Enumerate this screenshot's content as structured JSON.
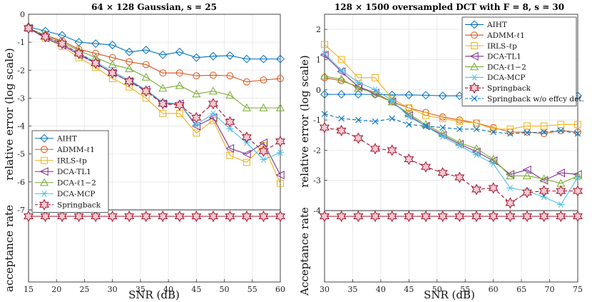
{
  "chart_data": [
    {
      "type": "line",
      "title": "64 × 128 Gaussian, s = 25",
      "xlabel": "SNR (dB)",
      "ylabel": "relative error (log scale)",
      "ylabel_lower": "acceptance rate",
      "xlim": [
        15,
        60
      ],
      "ylim": [
        -7,
        0
      ],
      "x_ticks": [
        15,
        20,
        25,
        30,
        35,
        40,
        45,
        50,
        55,
        60
      ],
      "y_ticks": [
        -7,
        -6,
        -5,
        -4,
        -3,
        -2,
        -1,
        0
      ],
      "legend_position": "lower-left",
      "x": [
        15,
        18,
        21,
        24,
        27,
        30,
        33,
        36,
        39,
        42,
        45,
        48,
        51,
        54,
        57,
        60
      ],
      "series": [
        {
          "name": "AIHT",
          "color": "#0072bd",
          "marker": "diamond",
          "dash": false,
          "values": [
            -0.45,
            -0.6,
            -0.75,
            -1.0,
            -1.05,
            -1.1,
            -1.35,
            -1.28,
            -1.45,
            -1.35,
            -1.55,
            -1.5,
            -1.48,
            -1.6,
            -1.6,
            -1.6
          ]
        },
        {
          "name": "ADMM-ℓ1",
          "color": "#d95319",
          "marker": "circle",
          "dash": false,
          "values": [
            -0.5,
            -0.75,
            -0.95,
            -1.25,
            -1.4,
            -1.55,
            -1.7,
            -1.8,
            -2.1,
            -2.1,
            -2.2,
            -2.18,
            -2.2,
            -2.42,
            -2.35,
            -2.3
          ]
        },
        {
          "name": "IRLS-ℓp",
          "color": "#edb120",
          "marker": "square",
          "dash": false,
          "values": [
            -0.5,
            -0.85,
            -1.15,
            -1.55,
            -1.9,
            -2.3,
            -2.6,
            -3.0,
            -3.55,
            -3.55,
            -4.25,
            -3.8,
            -5.05,
            -5.3,
            -4.7,
            -6.05
          ]
        },
        {
          "name": "DCA-TL1",
          "color": "#7e2f8e",
          "marker": "triangle-left",
          "dash": false,
          "values": [
            -0.5,
            -0.85,
            -1.1,
            -1.45,
            -1.75,
            -2.1,
            -2.4,
            -2.7,
            -3.2,
            -3.2,
            -4.0,
            -3.7,
            -4.8,
            -5.0,
            -4.6,
            -5.75
          ]
        },
        {
          "name": "DCA-ℓ1−2",
          "color": "#77ac30",
          "marker": "triangle-up",
          "dash": false,
          "values": [
            -0.5,
            -0.75,
            -1.0,
            -1.3,
            -1.55,
            -1.8,
            -1.95,
            -2.25,
            -2.65,
            -2.55,
            -2.85,
            -2.75,
            -2.9,
            -3.35,
            -3.35,
            -3.35
          ]
        },
        {
          "name": "DCA-MCP",
          "color": "#4dbeee",
          "marker": "asterisk",
          "dash": false,
          "values": [
            -0.5,
            -0.8,
            -1.05,
            -1.4,
            -1.7,
            -2.05,
            -2.35,
            -2.7,
            -3.15,
            -3.2,
            -3.95,
            -3.55,
            -4.1,
            -4.6,
            -5.2,
            -4.95
          ]
        },
        {
          "name": "Springback",
          "color": "#a2142f",
          "marker": "hexagram",
          "dash": true,
          "values": [
            -0.5,
            -0.8,
            -1.05,
            -1.4,
            -1.75,
            -2.1,
            -2.4,
            -2.75,
            -3.2,
            -3.25,
            -3.7,
            -3.2,
            -3.85,
            -4.4,
            -4.9,
            -4.55
          ]
        }
      ],
      "acceptance_rate": {
        "name": "Springback acceptance",
        "color": "#a2142f",
        "marker": "hexagram",
        "value": 1
      }
    },
    {
      "type": "line",
      "title": "128 × 1500 oversampled DCT with F = 8, s = 30",
      "xlabel": "SNR (dB)",
      "ylabel": "relative error (log scale)",
      "ylabel_lower": "Acceptance rate",
      "xlim": [
        30,
        75
      ],
      "ylim": [
        -4,
        2.5
      ],
      "x_ticks": [
        30,
        35,
        40,
        45,
        50,
        55,
        60,
        65,
        70,
        75
      ],
      "y_ticks": [
        -4,
        -3,
        -2,
        -1,
        0,
        1,
        2
      ],
      "legend_position": "top-right",
      "x": [
        30,
        33,
        36,
        39,
        42,
        45,
        48,
        51,
        54,
        57,
        60,
        63,
        66,
        69,
        72,
        75
      ],
      "series": [
        {
          "name": "AIHT",
          "color": "#0072bd",
          "marker": "diamond",
          "dash": false,
          "values": [
            -0.15,
            -0.15,
            -0.15,
            -0.15,
            -0.17,
            -0.17,
            -0.18,
            -0.2,
            -0.2,
            -0.2,
            -0.2,
            -0.2,
            -0.18,
            -0.2,
            -0.1,
            -0.2
          ]
        },
        {
          "name": "ADMM-ℓ1",
          "color": "#d95319",
          "marker": "circle",
          "dash": false,
          "values": [
            0.4,
            0.3,
            0.1,
            -0.15,
            -0.4,
            -0.6,
            -0.75,
            -0.9,
            -1.0,
            -1.1,
            -1.25,
            -1.4,
            -1.4,
            -1.45,
            -1.35,
            -1.4
          ]
        },
        {
          "name": "IRLS-ℓp",
          "color": "#edb120",
          "marker": "square",
          "dash": false,
          "values": [
            1.5,
            1.0,
            0.4,
            0.4,
            -0.3,
            -0.6,
            -0.85,
            -0.95,
            -1.05,
            -1.1,
            -1.3,
            -1.3,
            -1.2,
            -1.2,
            -1.15,
            -1.15
          ]
        },
        {
          "name": "DCA-TL1",
          "color": "#7e2f8e",
          "marker": "triangle-left",
          "dash": false,
          "values": [
            1.15,
            0.6,
            0.1,
            -0.1,
            -0.4,
            -0.85,
            -1.2,
            -1.5,
            -1.8,
            -2.05,
            -2.35,
            -2.8,
            -2.65,
            -3.0,
            -2.75,
            -2.8
          ]
        },
        {
          "name": "DCA-ℓ1−2",
          "color": "#77ac30",
          "marker": "triangle-up",
          "dash": false,
          "values": [
            0.45,
            0.35,
            0.05,
            -0.1,
            -0.4,
            -0.8,
            -1.15,
            -1.45,
            -1.75,
            -1.95,
            -2.3,
            -2.85,
            -2.85,
            -2.95,
            -3.1,
            -2.85
          ]
        },
        {
          "name": "DCA-MCP",
          "color": "#4dbeee",
          "marker": "asterisk",
          "dash": false,
          "values": [
            1.2,
            0.65,
            0.25,
            0.0,
            -0.35,
            -0.9,
            -1.2,
            -1.55,
            -1.85,
            -2.15,
            -2.45,
            -3.25,
            -3.35,
            -3.55,
            -3.8,
            -2.9
          ]
        },
        {
          "name": "Springback",
          "color": "#a2142f",
          "marker": "hexagram",
          "dash": true,
          "values": [
            -1.25,
            -1.35,
            -1.6,
            -1.95,
            -2.0,
            -2.3,
            -2.55,
            -2.75,
            -2.9,
            -3.3,
            -3.25,
            -3.75,
            -3.4,
            -3.35,
            -3.35,
            -3.35
          ]
        },
        {
          "name": "Springback w/o effcy det.",
          "color": "#0072bd",
          "marker": "x",
          "dash": true,
          "values": [
            -0.8,
            -0.95,
            -1.0,
            -1.05,
            -0.95,
            -1.15,
            -1.2,
            -1.25,
            -1.3,
            -1.3,
            -1.4,
            -1.45,
            -1.42,
            -1.4,
            -1.35,
            -1.45
          ]
        }
      ],
      "acceptance_rate": {
        "name": "Springback acceptance",
        "color": "#a2142f",
        "marker": "hexagram",
        "value": 1
      }
    }
  ]
}
